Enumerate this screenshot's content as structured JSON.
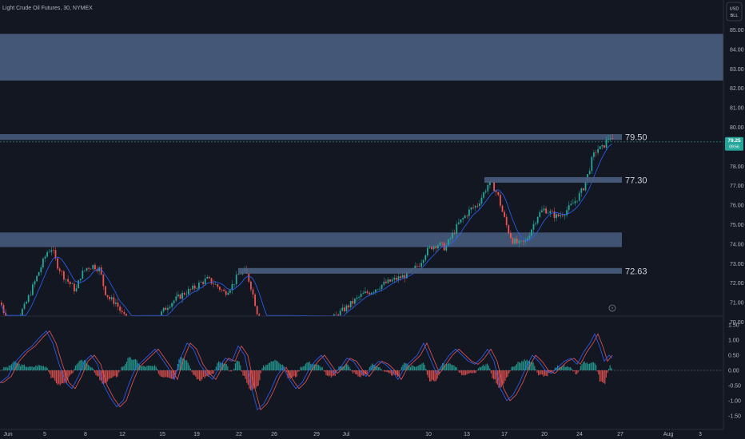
{
  "header": {
    "title": "Light Crude Oil Futures, 30, NYMEX",
    "currency_line1": "USD",
    "currency_line2": "BLL"
  },
  "price_panel": {
    "current_price": "79.25",
    "countdown": "09:56",
    "colors": {
      "background": "#131722",
      "zone": "#4a5e80",
      "up": "#26a69a",
      "down": "#ef5350",
      "ma": "#2962ff",
      "current_price_bg": "#26a69a"
    }
  },
  "chart_data": [
    {
      "type": "candlestick",
      "title": "Light Crude Oil Futures, 30, NYMEX",
      "x_ticks": [
        "Jun",
        "5",
        "8",
        "12",
        "15",
        "19",
        "22",
        "26",
        "29",
        "Jul",
        "10",
        "13",
        "17",
        "20",
        "24",
        "27",
        "Aug",
        "3"
      ],
      "y_ticks": [
        "85.00",
        "84.00",
        "83.00",
        "82.00",
        "81.00",
        "80.00",
        "78.00",
        "77.00",
        "76.00",
        "75.00",
        "74.00",
        "73.00",
        "72.00",
        "71.00",
        "70.00"
      ],
      "ylim": [
        69.5,
        85.5
      ],
      "zones": [
        {
          "from": 82.4,
          "to": 84.8
        },
        {
          "from": 79.35,
          "to": 79.65
        },
        {
          "from": 73.85,
          "to": 74.6
        }
      ],
      "levels": [
        {
          "label": "79.50",
          "value": 79.5
        },
        {
          "label": "77.30",
          "value": 77.3
        },
        {
          "label": "72.63",
          "value": 72.63
        }
      ],
      "price_path": [
        [
          0,
          71.0
        ],
        [
          10,
          69.8
        ],
        [
          20,
          70.2
        ],
        [
          30,
          70.8
        ],
        [
          40,
          71.8
        ],
        [
          50,
          72.8
        ],
        [
          58,
          73.6
        ],
        [
          64,
          73.8
        ],
        [
          70,
          73.0
        ],
        [
          78,
          72.4
        ],
        [
          86,
          72.0
        ],
        [
          94,
          71.6
        ],
        [
          100,
          72.4
        ],
        [
          108,
          72.8
        ],
        [
          116,
          72.9
        ],
        [
          124,
          72.7
        ],
        [
          130,
          71.6
        ],
        [
          136,
          71.2
        ],
        [
          144,
          71.0
        ],
        [
          152,
          70.4
        ],
        [
          160,
          69.9
        ],
        [
          170,
          69.6
        ],
        [
          180,
          69.7
        ],
        [
          190,
          70.0
        ],
        [
          200,
          70.4
        ],
        [
          210,
          70.9
        ],
        [
          220,
          71.2
        ],
        [
          230,
          71.5
        ],
        [
          240,
          71.7
        ],
        [
          250,
          72.0
        ],
        [
          258,
          72.2
        ],
        [
          266,
          72.0
        ],
        [
          272,
          71.8
        ],
        [
          280,
          71.5
        ],
        [
          290,
          71.9
        ],
        [
          298,
          72.5
        ],
        [
          306,
          72.6
        ],
        [
          312,
          72.0
        ],
        [
          318,
          71.0
        ],
        [
          324,
          70.0
        ],
        [
          330,
          69.6
        ],
        [
          340,
          69.7
        ],
        [
          350,
          70.0
        ],
        [
          360,
          69.9
        ],
        [
          370,
          69.7
        ],
        [
          380,
          69.4
        ],
        [
          392,
          69.5
        ],
        [
          404,
          69.8
        ],
        [
          416,
          70.2
        ],
        [
          428,
          70.6
        ],
        [
          440,
          71.0
        ],
        [
          452,
          71.4
        ],
        [
          464,
          71.6
        ],
        [
          476,
          71.9
        ],
        [
          488,
          72.1
        ],
        [
          500,
          72.3
        ],
        [
          512,
          72.5
        ],
        [
          524,
          73.0
        ],
        [
          532,
          73.6
        ],
        [
          540,
          73.9
        ],
        [
          548,
          74.0
        ],
        [
          556,
          73.8
        ],
        [
          564,
          74.4
        ],
        [
          572,
          75.0
        ],
        [
          580,
          75.4
        ],
        [
          588,
          75.8
        ],
        [
          596,
          76.0
        ],
        [
          604,
          76.6
        ],
        [
          610,
          77.1
        ],
        [
          616,
          77.0
        ],
        [
          622,
          76.5
        ],
        [
          628,
          75.6
        ],
        [
          634,
          74.8
        ],
        [
          640,
          74.2
        ],
        [
          648,
          74.0
        ],
        [
          656,
          74.1
        ],
        [
          664,
          74.8
        ],
        [
          672,
          75.5
        ],
        [
          680,
          75.8
        ],
        [
          688,
          75.6
        ],
        [
          696,
          75.4
        ],
        [
          704,
          75.6
        ],
        [
          712,
          75.9
        ],
        [
          720,
          76.3
        ],
        [
          728,
          76.8
        ],
        [
          734,
          77.5
        ],
        [
          740,
          78.4
        ],
        [
          746,
          78.9
        ],
        [
          752,
          78.9
        ],
        [
          758,
          79.3
        ],
        [
          762,
          79.6
        ],
        [
          766,
          79.2
        ]
      ]
    },
    {
      "type": "line",
      "title": "",
      "y_ticks": [
        "1.50",
        "1.00",
        "0.50",
        "0.00",
        "-0.50",
        "-1.00",
        "-1.50"
      ],
      "ylim": [
        -1.6,
        1.6
      ],
      "oscillator_path": [
        [
          0,
          -0.4
        ],
        [
          10,
          -0.2
        ],
        [
          20,
          0.3
        ],
        [
          30,
          0.6
        ],
        [
          40,
          0.8
        ],
        [
          50,
          1.1
        ],
        [
          58,
          1.3
        ],
        [
          66,
          0.9
        ],
        [
          74,
          0.2
        ],
        [
          82,
          -0.4
        ],
        [
          90,
          -0.6
        ],
        [
          98,
          -0.2
        ],
        [
          106,
          0.3
        ],
        [
          114,
          0.5
        ],
        [
          122,
          0.2
        ],
        [
          130,
          -0.5
        ],
        [
          138,
          -0.9
        ],
        [
          146,
          -1.2
        ],
        [
          154,
          -1.0
        ],
        [
          162,
          -0.4
        ],
        [
          170,
          0.1
        ],
        [
          178,
          0.3
        ],
        [
          186,
          0.5
        ],
        [
          194,
          0.7
        ],
        [
          202,
          0.4
        ],
        [
          210,
          0.1
        ],
        [
          218,
          -0.3
        ],
        [
          226,
          0.4
        ],
        [
          234,
          0.9
        ],
        [
          242,
          0.7
        ],
        [
          250,
          0.2
        ],
        [
          258,
          -0.1
        ],
        [
          266,
          -0.3
        ],
        [
          274,
          0.1
        ],
        [
          282,
          0.4
        ],
        [
          290,
          0.3
        ],
        [
          298,
          0.8
        ],
        [
          306,
          0.5
        ],
        [
          314,
          -0.5
        ],
        [
          322,
          -1.3
        ],
        [
          330,
          -1.1
        ],
        [
          338,
          -0.7
        ],
        [
          346,
          -0.2
        ],
        [
          354,
          0.1
        ],
        [
          362,
          -0.3
        ],
        [
          370,
          -0.6
        ],
        [
          378,
          -0.4
        ],
        [
          386,
          0.0
        ],
        [
          394,
          0.3
        ],
        [
          402,
          0.5
        ],
        [
          410,
          0.2
        ],
        [
          418,
          -0.1
        ],
        [
          426,
          0.1
        ],
        [
          434,
          0.4
        ],
        [
          442,
          0.3
        ],
        [
          450,
          0.0
        ],
        [
          458,
          -0.2
        ],
        [
          466,
          0.1
        ],
        [
          474,
          0.3
        ],
        [
          482,
          0.2
        ],
        [
          490,
          0.0
        ],
        [
          498,
          -0.3
        ],
        [
          506,
          0.1
        ],
        [
          514,
          0.3
        ],
        [
          522,
          0.5
        ],
        [
          530,
          0.9
        ],
        [
          538,
          0.4
        ],
        [
          546,
          -0.1
        ],
        [
          554,
          0.2
        ],
        [
          562,
          0.5
        ],
        [
          570,
          0.7
        ],
        [
          578,
          0.5
        ],
        [
          586,
          0.3
        ],
        [
          594,
          0.2
        ],
        [
          602,
          0.4
        ],
        [
          610,
          0.7
        ],
        [
          618,
          0.3
        ],
        [
          626,
          -0.6
        ],
        [
          634,
          -1.0
        ],
        [
          642,
          -0.8
        ],
        [
          650,
          -0.4
        ],
        [
          658,
          0.1
        ],
        [
          666,
          0.5
        ],
        [
          674,
          0.3
        ],
        [
          682,
          0.0
        ],
        [
          690,
          -0.1
        ],
        [
          698,
          0.1
        ],
        [
          706,
          0.3
        ],
        [
          714,
          0.4
        ],
        [
          722,
          0.2
        ],
        [
          730,
          0.6
        ],
        [
          738,
          0.9
        ],
        [
          744,
          1.2
        ],
        [
          750,
          0.8
        ],
        [
          756,
          0.3
        ],
        [
          762,
          0.5
        ],
        [
          766,
          0.4
        ]
      ]
    }
  ]
}
